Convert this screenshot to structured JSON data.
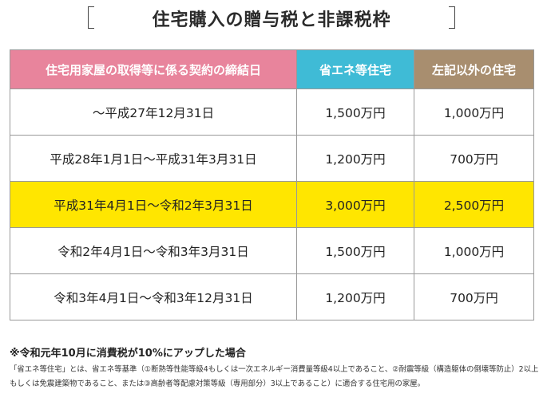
{
  "title": "住宅購入の贈与税と非課税枠",
  "table": {
    "headers": {
      "date": "住宅用家屋の取得等に係る契約の締結日",
      "eco": "省エネ等住宅",
      "other": "左記以外の住宅"
    },
    "header_colors": {
      "date": "#e8849c",
      "eco": "#3fbbd6",
      "other": "#a88e6f"
    },
    "highlight_color": "#ffe600",
    "rows": [
      {
        "date": "〜平成27年12月31日",
        "eco": "1,500万円",
        "other": "1,000万円"
      },
      {
        "date": "平成28年1月1日〜平成31年3月31日",
        "eco": "1,200万円",
        "other": "700万円"
      },
      {
        "date": "平成31年4月1日〜令和2年3月31日",
        "eco": "3,000万円",
        "other": "2,500万円",
        "highlighted": true
      },
      {
        "date": "令和2年4月1日〜令和3年3月31日",
        "eco": "1,500万円",
        "other": "1,000万円"
      },
      {
        "date": "令和3年4月1日〜令和3年12月31日",
        "eco": "1,200万円",
        "other": "700万円"
      }
    ]
  },
  "notes": {
    "tax_note": "※令和元年10月に消費税が10%にアップした場合",
    "definition": "「省エネ等住宅」とは、省エネ等基準（①断熱等性能等級4もしくは一次エネルギー消費量等級4以上であること、②耐震等級（構造躯体の倒壊等防止）2以上もしくは免震建築物であること、または③高齢者等配慮対策等級（専用部分）3以上であること）に適合する住宅用の家屋。"
  }
}
